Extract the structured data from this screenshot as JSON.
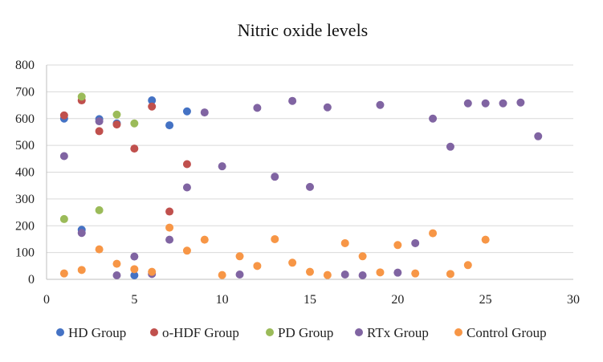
{
  "chart_data": {
    "type": "scatter",
    "title": "Nitric oxide levels",
    "xlabel": "",
    "ylabel": "",
    "xlim": [
      0,
      30
    ],
    "ylim": [
      0,
      800
    ],
    "xticks": [
      0,
      5,
      10,
      15,
      20,
      25,
      30
    ],
    "yticks": [
      0,
      100,
      200,
      300,
      400,
      500,
      600,
      700,
      800
    ],
    "grid": "horizontal",
    "legend_position": "bottom",
    "series": [
      {
        "name": "HD Group",
        "color": "#4472c4",
        "points": [
          [
            1,
            600
          ],
          [
            2,
            185
          ],
          [
            3,
            598
          ],
          [
            4,
            582
          ],
          [
            5,
            15
          ],
          [
            6,
            668
          ],
          [
            7,
            575
          ],
          [
            8,
            627
          ]
        ]
      },
      {
        "name": "o-HDF Group",
        "color": "#c0504d",
        "points": [
          [
            1,
            612
          ],
          [
            2,
            668
          ],
          [
            3,
            553
          ],
          [
            4,
            578
          ],
          [
            5,
            488
          ],
          [
            6,
            645
          ],
          [
            7,
            253
          ],
          [
            8,
            430
          ]
        ]
      },
      {
        "name": "PD Group",
        "color": "#9bbb59",
        "points": [
          [
            1,
            225
          ],
          [
            2,
            682
          ],
          [
            3,
            258
          ],
          [
            4,
            615
          ],
          [
            5,
            582
          ]
        ]
      },
      {
        "name": "RTx Group",
        "color": "#8064a2",
        "points": [
          [
            1,
            460
          ],
          [
            2,
            173
          ],
          [
            3,
            590
          ],
          [
            4,
            15
          ],
          [
            5,
            85
          ],
          [
            6,
            20
          ],
          [
            7,
            148
          ],
          [
            8,
            343
          ],
          [
            9,
            623
          ],
          [
            10,
            422
          ],
          [
            11,
            18
          ],
          [
            12,
            640
          ],
          [
            13,
            383
          ],
          [
            14,
            666
          ],
          [
            15,
            345
          ],
          [
            16,
            642
          ],
          [
            17,
            18
          ],
          [
            18,
            15
          ],
          [
            19,
            651
          ],
          [
            20,
            25
          ],
          [
            21,
            135
          ],
          [
            22,
            600
          ],
          [
            23,
            495
          ],
          [
            24,
            657
          ],
          [
            25,
            657
          ],
          [
            26,
            657
          ],
          [
            27,
            660
          ],
          [
            28,
            534
          ]
        ]
      },
      {
        "name": "Control Group",
        "color": "#f79646",
        "points": [
          [
            1,
            22
          ],
          [
            2,
            35
          ],
          [
            3,
            112
          ],
          [
            4,
            58
          ],
          [
            5,
            38
          ],
          [
            6,
            28
          ],
          [
            7,
            193
          ],
          [
            8,
            107
          ],
          [
            9,
            148
          ],
          [
            10,
            16
          ],
          [
            11,
            86
          ],
          [
            12,
            50
          ],
          [
            13,
            150
          ],
          [
            14,
            62
          ],
          [
            15,
            28
          ],
          [
            16,
            16
          ],
          [
            17,
            135
          ],
          [
            18,
            86
          ],
          [
            19,
            26
          ],
          [
            20,
            128
          ],
          [
            21,
            22
          ],
          [
            22,
            172
          ],
          [
            23,
            20
          ],
          [
            24,
            53
          ],
          [
            25,
            148
          ]
        ]
      }
    ]
  }
}
